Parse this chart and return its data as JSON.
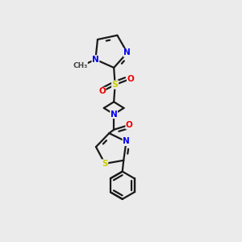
{
  "background_color": "#ebebeb",
  "bond_color": "#1a1a1a",
  "atom_colors": {
    "N": "#0000ee",
    "O": "#ee0000",
    "S": "#cccc00",
    "C": "#1a1a1a"
  },
  "lw": 1.6
}
